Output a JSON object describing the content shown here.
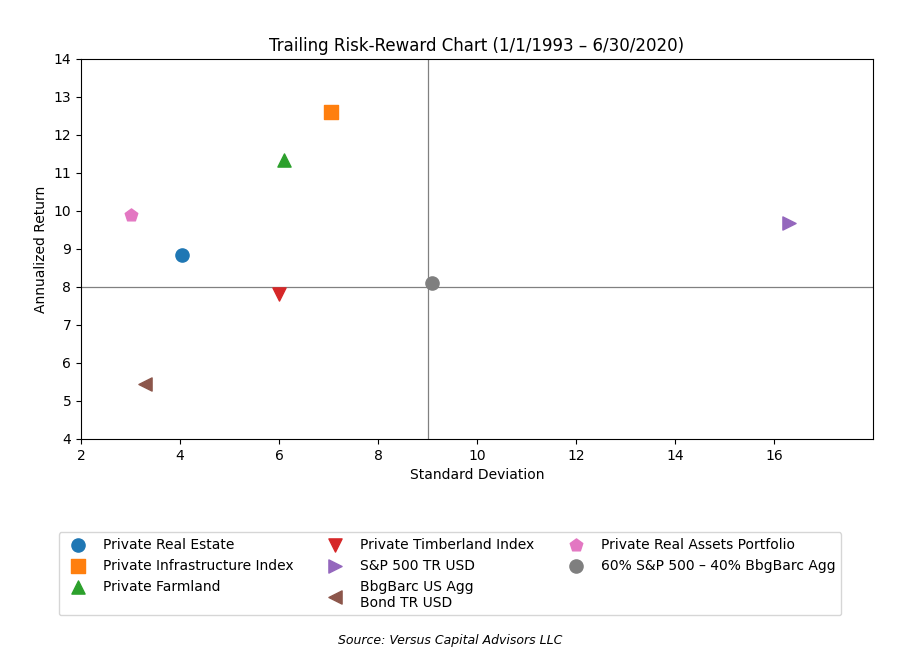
{
  "chart_data": {
    "type": "scatter",
    "title": "Trailing Risk-Reward Chart (1/1/1993 – 6/30/2020)",
    "x_label": "Standard Deviation",
    "y_label": "Annualized Return",
    "xlim": [
      2,
      18
    ],
    "ylim": [
      4,
      14
    ],
    "xticks": [
      2,
      4,
      6,
      8,
      10,
      12,
      14,
      16
    ],
    "yticks": [
      4,
      5,
      6,
      7,
      8,
      9,
      10,
      11,
      12,
      13,
      14
    ],
    "hline_y": 8.0,
    "vline_x": 9.0,
    "grid": false,
    "legend": "bottom",
    "source": "Source: Versus Capital Advisors LLC",
    "series": [
      {
        "name": "Private Real Estate",
        "marker": "o",
        "x": [
          4.05
        ],
        "values": [
          8.85
        ]
      },
      {
        "name": "Private Infrastructure Index",
        "marker": "s",
        "x": [
          7.05
        ],
        "values": [
          12.6
        ]
      },
      {
        "name": "Private Farmland",
        "marker": "^",
        "x": [
          6.1
        ],
        "values": [
          11.35
        ]
      },
      {
        "name": "Private Timberland Index",
        "marker": "v",
        "x": [
          6.0
        ],
        "values": [
          7.8
        ]
      },
      {
        "name": "S&P 500 TR USD",
        "marker": ">",
        "x": [
          16.3
        ],
        "values": [
          9.68
        ]
      },
      {
        "name": "BbgBarc US Agg\nBond TR USD",
        "marker": "<",
        "x": [
          3.3
        ],
        "values": [
          5.45
        ]
      },
      {
        "name": "Private Real Assets Portfolio",
        "marker": "p",
        "x": [
          3.0
        ],
        "values": [
          9.9
        ]
      },
      {
        "name": "60% S&P 500 – 40% BbgBarc Agg",
        "marker": "o",
        "x": [
          9.1
        ],
        "values": [
          8.1
        ]
      }
    ]
  }
}
